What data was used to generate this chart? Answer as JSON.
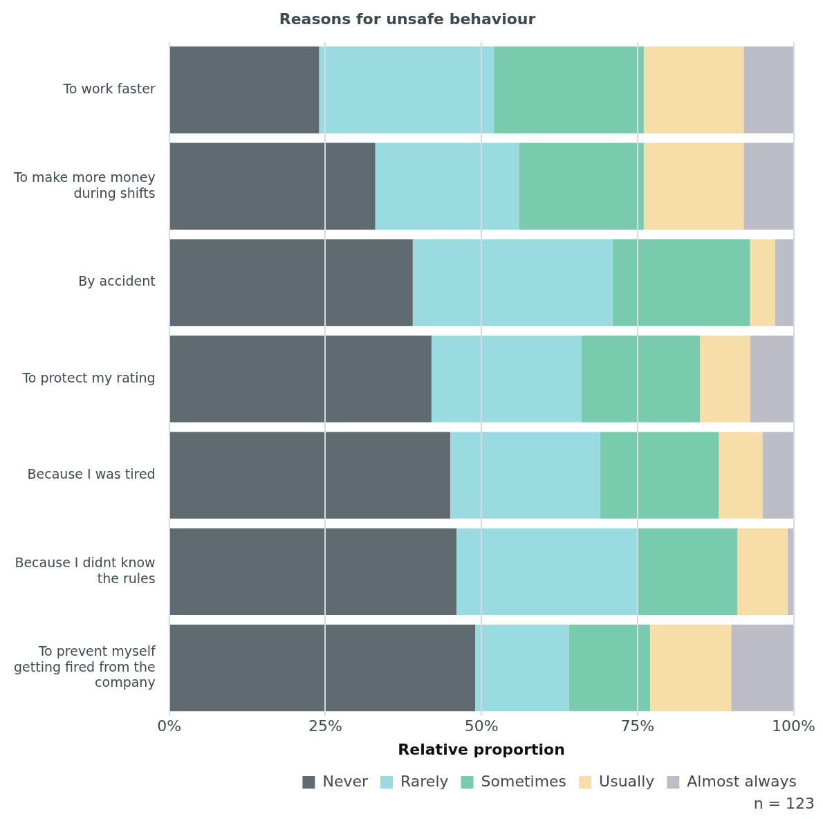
{
  "chart_data": {
    "type": "bar",
    "title": "Reasons for unsafe behaviour",
    "xlabel": "Relative proportion",
    "orientation": "horizontal",
    "stacked": true,
    "categories": [
      "To work faster",
      "To make more money during shifts",
      "By accident",
      "To protect my rating",
      "Because I was tired",
      "Because I didnt know the rules",
      "To prevent myself getting fired from the company"
    ],
    "series": [
      {
        "name": "Never",
        "color": "#606b70",
        "values": [
          24,
          33,
          39,
          42,
          45,
          46,
          49
        ]
      },
      {
        "name": "Rarely",
        "color": "#99dbe1",
        "values": [
          28,
          23,
          32,
          24,
          24,
          29,
          15
        ]
      },
      {
        "name": "Sometimes",
        "color": "#79cbae",
        "values": [
          24,
          20,
          22,
          19,
          19,
          16,
          13
        ]
      },
      {
        "name": "Usually",
        "color": "#f7dea8",
        "values": [
          16,
          16,
          4,
          8,
          7,
          8,
          13
        ]
      },
      {
        "name": "Almost always",
        "color": "#bcbdc6",
        "values": [
          8,
          8,
          3,
          7,
          5,
          1,
          10
        ]
      }
    ],
    "xlim": [
      0,
      100
    ],
    "xticks": [
      {
        "value": 0,
        "label": "0%"
      },
      {
        "value": 25,
        "label": "25%"
      },
      {
        "value": 50,
        "label": "50%"
      },
      {
        "value": 75,
        "label": "75%"
      },
      {
        "value": 100,
        "label": "100%"
      }
    ],
    "grid": "x",
    "legend": "bottom right",
    "annotations": [
      "n = 123"
    ]
  }
}
